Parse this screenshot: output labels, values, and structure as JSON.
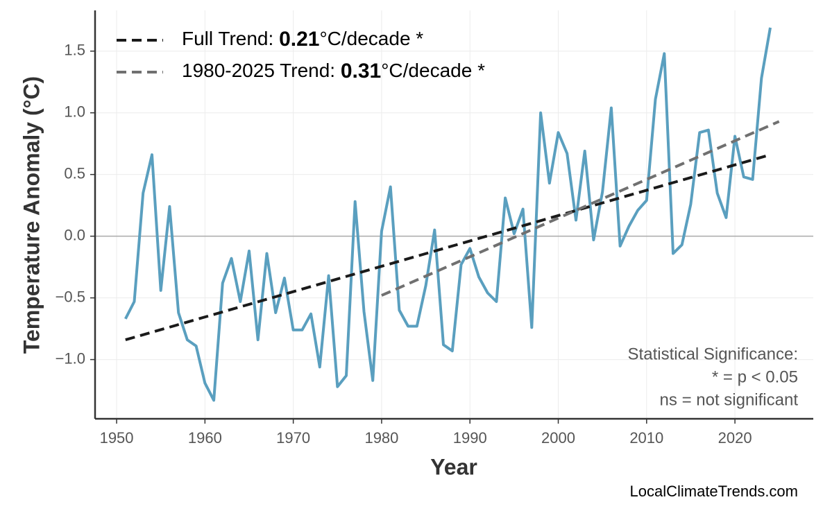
{
  "chart_data": {
    "type": "line",
    "x_label": "Year",
    "y_label": "Temperature Anomaly (°C)",
    "xlim": [
      1947.56,
      2028.87
    ],
    "ylim": [
      -1.48,
      1.83
    ],
    "xticks": [
      1950,
      1960,
      1970,
      1980,
      1990,
      2000,
      2010,
      2020
    ],
    "yticks": [
      {
        "value": -1.0,
        "label": "−1.0"
      },
      {
        "value": -0.5,
        "label": "−0.5"
      },
      {
        "value": 0.0,
        "label": "0.0"
      },
      0.5,
      {
        "value": 1.0,
        "label": "1.0"
      },
      1.5
    ],
    "grid": true,
    "reference_line": 0,
    "series": [
      {
        "color": "#5a9fbf",
        "x": [
          1951,
          1952,
          1953,
          1954,
          1955,
          1956,
          1957,
          1958,
          1959,
          1960,
          1961,
          1962,
          1963,
          1964,
          1965,
          1966,
          1967,
          1968,
          1969,
          1970,
          1971,
          1972,
          1973,
          1974,
          1975,
          1976,
          1977,
          1978,
          1979,
          1980,
          1981,
          1982,
          1983,
          1984,
          1985,
          1986,
          1987,
          1988,
          1989,
          1990,
          1991,
          1992,
          1993,
          1994,
          1995,
          1996,
          1997,
          1998,
          1999,
          2000,
          2001,
          2002,
          2003,
          2004,
          2005,
          2006,
          2007,
          2008,
          2009,
          2010,
          2011,
          2012,
          2013,
          2014,
          2015,
          2016,
          2017,
          2018,
          2019,
          2020,
          2021,
          2022,
          2023,
          2024
        ],
        "values": [
          -0.67,
          -0.53,
          0.35,
          0.66,
          -0.44,
          0.24,
          -0.62,
          -0.84,
          -0.89,
          -1.19,
          -1.33,
          -0.38,
          -0.18,
          -0.53,
          -0.12,
          -0.84,
          -0.14,
          -0.62,
          -0.34,
          -0.76,
          -0.76,
          -0.63,
          -1.06,
          -0.32,
          -1.22,
          -1.13,
          0.28,
          -0.61,
          -1.17,
          0.04,
          0.4,
          -0.6,
          -0.73,
          -0.73,
          -0.4,
          0.05,
          -0.88,
          -0.93,
          -0.23,
          -0.1,
          -0.33,
          -0.46,
          -0.53,
          0.31,
          0.02,
          0.22,
          -0.74,
          1.0,
          0.43,
          0.84,
          0.67,
          0.13,
          0.69,
          -0.03,
          0.36,
          1.04,
          -0.08,
          0.08,
          0.21,
          0.29,
          1.11,
          1.48,
          -0.14,
          -0.07,
          0.26,
          0.84,
          0.86,
          0.35,
          0.15,
          0.81,
          0.48,
          0.46,
          1.28,
          1.69
        ]
      }
    ],
    "trends": [
      {
        "prefix": "Full Trend: ",
        "rate": 0.21,
        "suffix": "°C/decade *",
        "color": "#1a1a1a",
        "x": [
          1951,
          2024
        ],
        "values": [
          -0.84,
          0.66
        ]
      },
      {
        "prefix": "1980-2025 Trend: ",
        "rate": 0.31,
        "suffix": "°C/decade *",
        "color": "#707070",
        "x": [
          1980,
          2025
        ],
        "values": [
          -0.48,
          0.93
        ]
      }
    ],
    "annotation": [
      "Statistical Significance:",
      "* = p < 0.05",
      "ns = not significant"
    ],
    "source": "LocalClimateTrends.com"
  }
}
